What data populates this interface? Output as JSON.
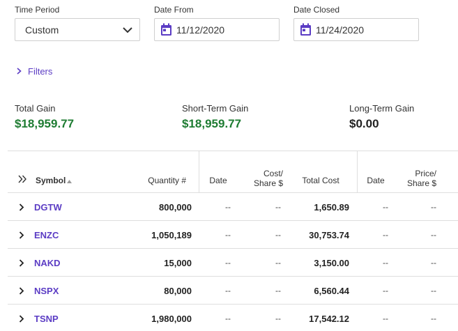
{
  "filters_bar": {
    "time_period": {
      "label": "Time Period",
      "value": "Custom"
    },
    "date_from": {
      "label": "Date From",
      "value": "11/12/2020"
    },
    "date_closed": {
      "label": "Date Closed",
      "value": "11/24/2020"
    },
    "filters_link": "Filters"
  },
  "summary": {
    "total_gain": {
      "label": "Total Gain",
      "value": "$18,959.77"
    },
    "short_term_gain": {
      "label": "Short-Term Gain",
      "value": "$18,959.77"
    },
    "long_term_gain": {
      "label": "Long-Term Gain",
      "value": "$0.00"
    }
  },
  "table": {
    "headers": {
      "symbol": "Symbol",
      "quantity": "Quantity #",
      "date_acquired": "Date",
      "cost_share_1": "Cost/",
      "cost_share_2": "Share $",
      "total_cost": "Total Cost",
      "date_sold": "Date",
      "price_share_1": "Price/",
      "price_share_2": "Share $"
    },
    "rows": [
      {
        "symbol": "DGTW",
        "quantity": "800,000",
        "date": "--",
        "cost_share": "--",
        "total_cost": "1,650.89",
        "date2": "--",
        "price_share": "--"
      },
      {
        "symbol": "ENZC",
        "quantity": "1,050,189",
        "date": "--",
        "cost_share": "--",
        "total_cost": "30,753.74",
        "date2": "--",
        "price_share": "--"
      },
      {
        "symbol": "NAKD",
        "quantity": "15,000",
        "date": "--",
        "cost_share": "--",
        "total_cost": "3,150.00",
        "date2": "--",
        "price_share": "--"
      },
      {
        "symbol": "NSPX",
        "quantity": "80,000",
        "date": "--",
        "cost_share": "--",
        "total_cost": "6,560.44",
        "date2": "--",
        "price_share": "--"
      },
      {
        "symbol": "TSNP",
        "quantity": "1,980,000",
        "date": "--",
        "cost_share": "--",
        "total_cost": "17,542.12",
        "date2": "--",
        "price_share": "--"
      }
    ]
  },
  "colors": {
    "accent": "#5b3cc4",
    "gain": "#1e7c32",
    "border": "#dedede"
  }
}
